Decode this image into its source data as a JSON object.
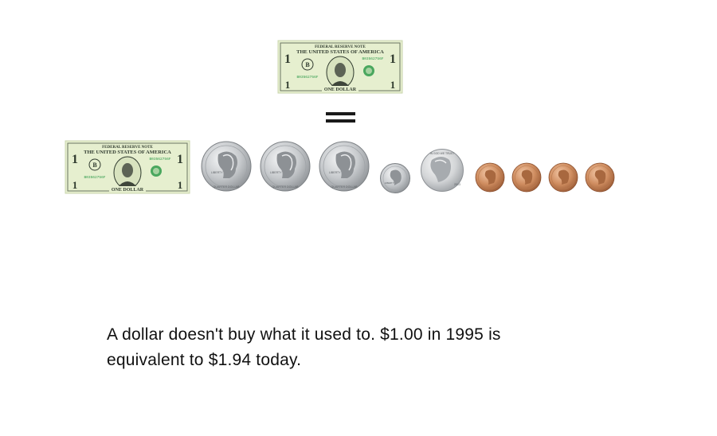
{
  "caption": {
    "line1": "A dollar doesn't buy what it used to. $1.00 in 1995 is",
    "line2": "equivalent to $1.94 today."
  },
  "bill": {
    "header": "FEDERAL RESERVE NOTE",
    "country": "THE UNITED STATES OF AMERICA",
    "serial": "B03562756F",
    "denomination": "ONE DOLLAR",
    "corner": "1",
    "district": "B"
  },
  "coins": {
    "quarter_top": "UNITED STATES OF AMERICA",
    "quarter_liberty": "LIBERTY",
    "quarter_bottom": "QUARTER DOLLAR",
    "dime_liberty": "LIBERTY",
    "nickel_motto": "IN GOD WE TRUST",
    "nickel_year": "2013"
  },
  "equation": {
    "quarters": 3,
    "dimes": 1,
    "nickels": 1,
    "pennies": 4
  },
  "colors": {
    "bill_bg": "#e6efcf",
    "bill_ink": "#2f3a2e",
    "treasury_seal": "#2e9a4a",
    "silver": "#b9bcbf",
    "copper": "#c98a5e",
    "text": "#111111"
  }
}
